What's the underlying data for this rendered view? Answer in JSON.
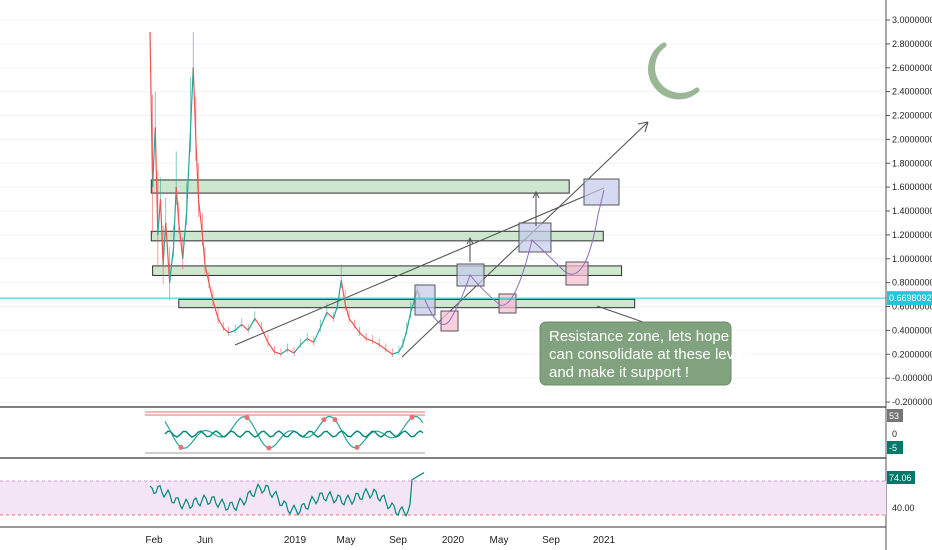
{
  "chart_data": {
    "type": "line",
    "price_axis": {
      "ticks": [
        "3.0000000",
        "2.8000000",
        "2.6000000",
        "2.4000000",
        "2.2000000",
        "2.0000000",
        "1.8000000",
        "1.6000000",
        "1.4000000",
        "1.2000000",
        "1.0000000",
        "0.8000000",
        "0.6000000",
        "0.4000000",
        "0.2000000",
        "-0.0000000",
        "-0.2000000"
      ],
      "tick_values": [
        3.0,
        2.8,
        2.6,
        2.4,
        2.2,
        2.0,
        1.8,
        1.6,
        1.4,
        1.2,
        1.0,
        0.8,
        0.6,
        0.4,
        0.2,
        0.0,
        -0.2
      ],
      "current_price_label": "0.6698092",
      "current_price": 0.6698,
      "ylim": [
        -0.2,
        3.0
      ]
    },
    "time_axis": {
      "labels": [
        "Feb",
        "Jun",
        "2019",
        "May",
        "Sep",
        "2020",
        "May",
        "Sep",
        "2021"
      ]
    },
    "price_series": [
      {
        "m": 0,
        "v": 2.9
      },
      {
        "m": 0.2,
        "v": 1.6
      },
      {
        "m": 0.4,
        "v": 2.1
      },
      {
        "m": 0.6,
        "v": 1.2
      },
      {
        "m": 0.8,
        "v": 1.5
      },
      {
        "m": 1.0,
        "v": 0.95
      },
      {
        "m": 1.2,
        "v": 1.3
      },
      {
        "m": 1.5,
        "v": 0.8
      },
      {
        "m": 1.8,
        "v": 1.1
      },
      {
        "m": 2.0,
        "v": 1.6
      },
      {
        "m": 2.2,
        "v": 1.3
      },
      {
        "m": 2.5,
        "v": 1.0
      },
      {
        "m": 2.8,
        "v": 1.4
      },
      {
        "m": 3.1,
        "v": 2.1
      },
      {
        "m": 3.3,
        "v": 2.6
      },
      {
        "m": 3.5,
        "v": 2.0
      },
      {
        "m": 3.7,
        "v": 1.5
      },
      {
        "m": 4.0,
        "v": 1.2
      },
      {
        "m": 4.2,
        "v": 0.95
      },
      {
        "m": 4.5,
        "v": 0.8
      },
      {
        "m": 4.8,
        "v": 0.65
      },
      {
        "m": 5.2,
        "v": 0.5
      },
      {
        "m": 5.6,
        "v": 0.42
      },
      {
        "m": 6.0,
        "v": 0.38
      },
      {
        "m": 6.5,
        "v": 0.4
      },
      {
        "m": 7.0,
        "v": 0.45
      },
      {
        "m": 7.5,
        "v": 0.4
      },
      {
        "m": 8.0,
        "v": 0.5
      },
      {
        "m": 8.5,
        "v": 0.42
      },
      {
        "m": 9.0,
        "v": 0.3
      },
      {
        "m": 9.5,
        "v": 0.22
      },
      {
        "m": 10.0,
        "v": 0.2
      },
      {
        "m": 10.5,
        "v": 0.24
      },
      {
        "m": 11.0,
        "v": 0.21
      },
      {
        "m": 11.5,
        "v": 0.28
      },
      {
        "m": 12.0,
        "v": 0.33
      },
      {
        "m": 12.5,
        "v": 0.3
      },
      {
        "m": 13.0,
        "v": 0.42
      },
      {
        "m": 13.5,
        "v": 0.55
      },
      {
        "m": 14.0,
        "v": 0.5
      },
      {
        "m": 14.3,
        "v": 0.6
      },
      {
        "m": 14.6,
        "v": 0.82
      },
      {
        "m": 14.9,
        "v": 0.62
      },
      {
        "m": 15.2,
        "v": 0.5
      },
      {
        "m": 15.6,
        "v": 0.44
      },
      {
        "m": 16.0,
        "v": 0.38
      },
      {
        "m": 16.5,
        "v": 0.33
      },
      {
        "m": 17.0,
        "v": 0.31
      },
      {
        "m": 17.5,
        "v": 0.28
      },
      {
        "m": 18.0,
        "v": 0.24
      },
      {
        "m": 18.5,
        "v": 0.2
      },
      {
        "m": 19.0,
        "v": 0.22
      },
      {
        "m": 19.3,
        "v": 0.28
      },
      {
        "m": 19.6,
        "v": 0.4
      },
      {
        "m": 19.9,
        "v": 0.55
      },
      {
        "m": 20.2,
        "v": 0.66
      },
      {
        "m": 20.4,
        "v": 0.74
      },
      {
        "m": 20.6,
        "v": 0.67
      }
    ],
    "resistance_zones": [
      {
        "low": 1.55,
        "high": 1.66,
        "m_start": 0.1,
        "m_end": 32.0
      },
      {
        "low": 1.15,
        "high": 1.23,
        "m_start": 0.1,
        "m_end": 34.6
      },
      {
        "low": 0.86,
        "high": 0.94,
        "m_start": 0.2,
        "m_end": 36.0
      },
      {
        "low": 0.59,
        "high": 0.66,
        "m_start": 2.2,
        "m_end": 37.0
      }
    ],
    "annotation": "Resistance zone, lets hope we can consolidate at these levels and make it support !",
    "oscillator_1": {
      "level_label": "53",
      "zero_label": "0",
      "level_label_2": "-5"
    },
    "oscillator_2": {
      "value_label": "74.06",
      "tick_label": "40.00"
    },
    "colors": {
      "up": "#26a69a",
      "down": "#ef5350",
      "zone_fill": "#a5d6a7",
      "note_bg": "#81a27e",
      "moon": "#9ab795",
      "current_price": "#26c6da",
      "osc_band": "#f3e5f5"
    }
  }
}
